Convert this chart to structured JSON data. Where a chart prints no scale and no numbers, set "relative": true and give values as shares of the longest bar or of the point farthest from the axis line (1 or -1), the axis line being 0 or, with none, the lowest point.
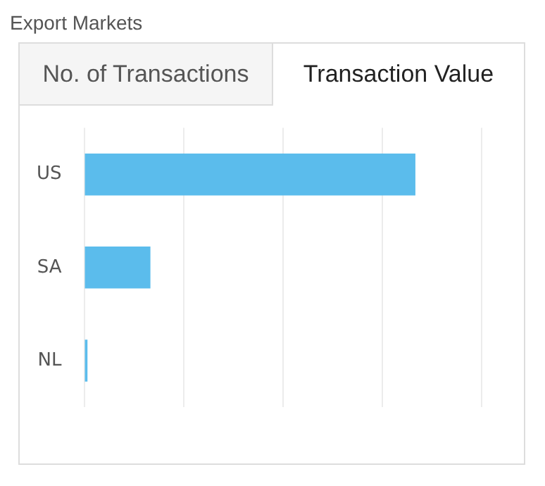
{
  "chart_data": {
    "type": "bar",
    "title": "Export Markets",
    "orientation": "horizontal",
    "relative": true,
    "categories": [
      "US",
      "SA",
      "NL"
    ],
    "values": [
      1,
      0.2,
      0.01
    ],
    "color": "#5bbcec",
    "grid": "x",
    "tick_labels": "y",
    "annotations": [
      "No. of Transactions",
      "Transaction Value"
    ]
  }
}
